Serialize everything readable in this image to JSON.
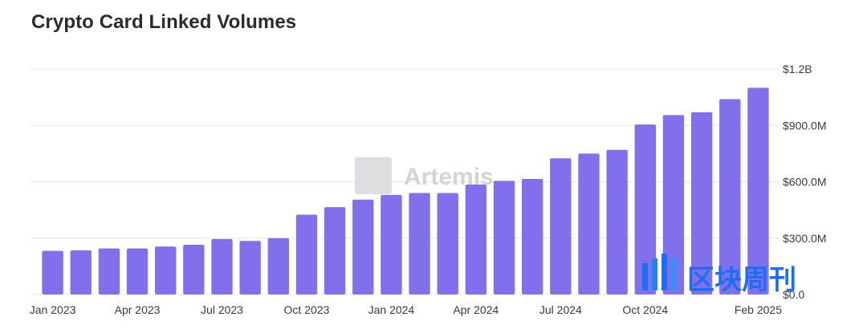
{
  "title": "Crypto Card Linked Volumes",
  "watermark": "Artemis",
  "brand": {
    "text": "区块周刊",
    "color": "#1f6df2"
  },
  "colors": {
    "bar": "#8070ec",
    "grid": "#e7e7ea",
    "axis_text": "#3a3a44"
  },
  "chart_data": {
    "type": "bar",
    "title": "Crypto Card Linked Volumes",
    "x_tick_labels": [
      "Jan 2023",
      "Apr 2023",
      "Jul 2023",
      "Oct 2023",
      "Jan 2024",
      "Apr 2024",
      "Jul 2024",
      "Oct 2024",
      "Feb 2025"
    ],
    "y_tick_labels": [
      "$0.0",
      "$300.0M",
      "$600.0M",
      "$900.0M",
      "$1.2B"
    ],
    "categories": [
      "Jan 2023",
      "Feb 2023",
      "Mar 2023",
      "Apr 2023",
      "May 2023",
      "Jun 2023",
      "Jul 2023",
      "Aug 2023",
      "Sep 2023",
      "Oct 2023",
      "Nov 2023",
      "Dec 2023",
      "Jan 2024",
      "Feb 2024",
      "Mar 2024",
      "Apr 2024",
      "May 2024",
      "Jun 2024",
      "Jul 2024",
      "Aug 2024",
      "Sep 2024",
      "Oct 2024",
      "Nov 2024",
      "Dec 2024",
      "Jan 2025",
      "Feb 2025"
    ],
    "values": [
      232,
      235,
      245,
      245,
      255,
      265,
      295,
      285,
      300,
      425,
      465,
      505,
      530,
      540,
      540,
      585,
      605,
      615,
      725,
      750,
      770,
      905,
      955,
      970,
      1040,
      1100
    ],
    "units": "USD millions",
    "ylim": [
      0,
      1200
    ],
    "grid": true,
    "y_axis_side": "right"
  }
}
